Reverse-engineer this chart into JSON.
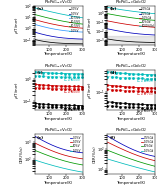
{
  "title_a": "PbPd$_{1-x}$V$_x$O$_2$",
  "title_b": "PbPd$_{1-x}$Gd$_x$O$_2$",
  "title_c": "PbPd$_{1-x}$V$_x$O$_2$",
  "title_d": "PbPd$_{1-x}$Gd$_x$O$_2$",
  "title_e": "PbPd$_{1-x}$V$_x$O$_2$",
  "title_f": "PbPd$_{1-x}$Gd$_x$O$_2$",
  "panel_labels": [
    "(a)",
    "(b)",
    "(c)",
    "(d)",
    "(e)",
    "(f)"
  ],
  "colors_V_ab": [
    "#000000",
    "#0000bb",
    "#3399ff",
    "#cc0000",
    "#009900",
    "#00bbbb"
  ],
  "colors_Gd_ab": [
    "#000000",
    "#0000bb",
    "#cc0000",
    "#009900",
    "#00bbbb"
  ],
  "labels_V_ab": [
    "0.0%V",
    "1.0%V",
    "10.5%V",
    "10.5%V",
    "10.5%V",
    "1.0%V"
  ],
  "labels_Gd_ab": [
    "0.0%Gd",
    "0.5%Gd",
    "1.0%Gd",
    "10%Gd",
    "1000%Gd"
  ],
  "colors_cd_teal": "#00bbbb",
  "colors_cd_red": "#cc0000",
  "colors_cd_black": "#000000",
  "colors_V_ef": [
    "#0000bb",
    "#cc0000",
    "#009900",
    "#00bbbb"
  ],
  "labels_V_ef": [
    "0.0%V",
    "1.0%V",
    "10%V",
    "1.0%V"
  ],
  "colors_Gd_ef": [
    "#0000bb",
    "#cc0000",
    "#009900",
    "#00bbbb"
  ],
  "labels_Gd_ef": [
    "0.5%Gd",
    "1.0%Gd",
    "10%Gd",
    "1.0%Gd"
  ],
  "xlabel": "Temperature(K)",
  "ylabel_ab": "$\\rho$(T/mm)",
  "ylabel_cd": "$\\rho$(T/mm)",
  "ylabel_ef": "CER(%/v)"
}
